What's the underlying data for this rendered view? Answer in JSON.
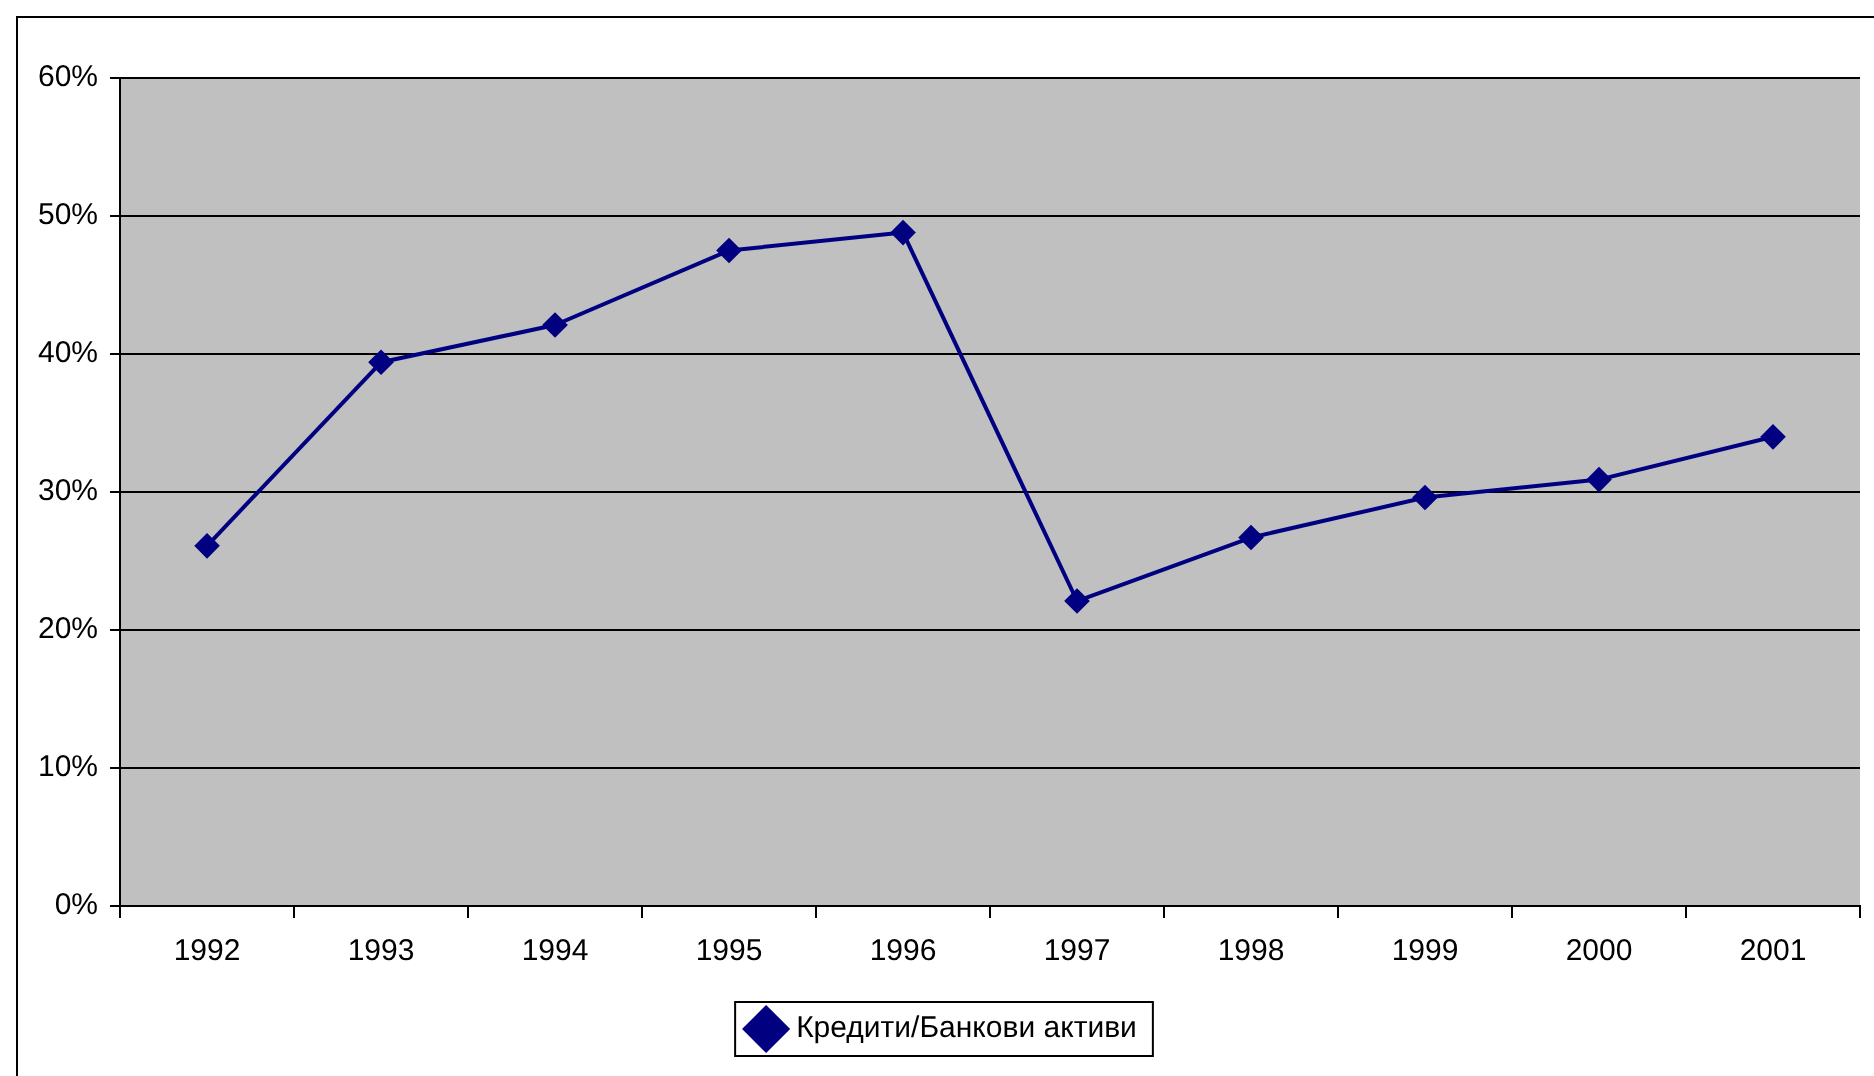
{
  "chart_data": {
    "type": "line",
    "categories": [
      "1992",
      "1993",
      "1994",
      "1995",
      "1996",
      "1997",
      "1998",
      "1999",
      "2000",
      "2001"
    ],
    "series": [
      {
        "name": "Кредити/Банкови активи",
        "color": "#000080",
        "values": [
          26.1,
          39.4,
          42.1,
          47.5,
          48.8,
          22.1,
          26.7,
          29.6,
          30.9,
          34.0
        ]
      }
    ],
    "ylim": [
      0,
      60
    ],
    "yticks": [
      {
        "value": 0,
        "label": "0%"
      },
      {
        "value": 10,
        "label": "10%"
      },
      {
        "value": 20,
        "label": "20%"
      },
      {
        "value": 30,
        "label": "30%"
      },
      {
        "value": 40,
        "label": "40%"
      },
      {
        "value": 50,
        "label": "50%"
      },
      {
        "value": 60,
        "label": "60%"
      }
    ],
    "grid": "y",
    "legend": "bottom",
    "marker": "diamond",
    "line_style": "solid"
  }
}
